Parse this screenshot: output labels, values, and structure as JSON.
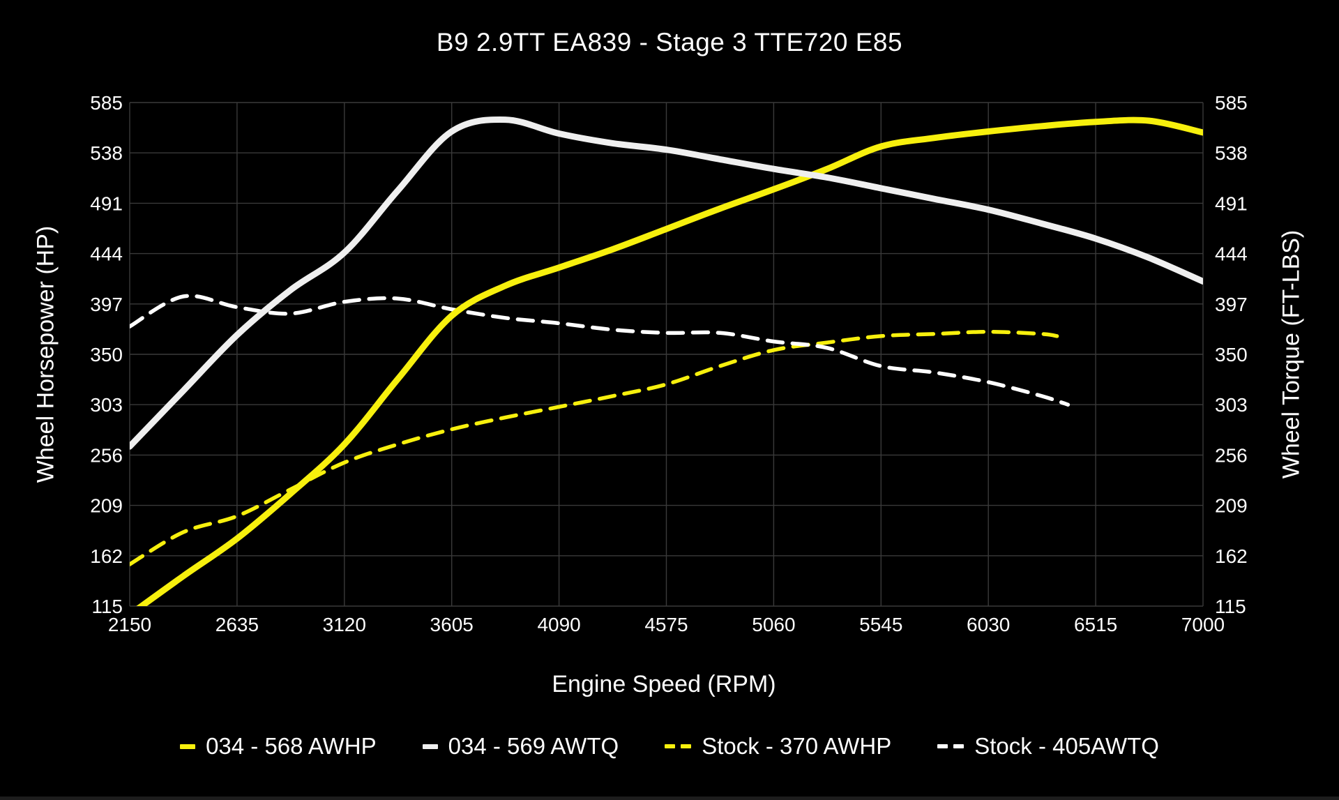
{
  "chart_data": {
    "type": "line",
    "title": "B9 2.9TT EA839 - Stage 3 TTE720 E85",
    "xlabel": "Engine Speed (RPM)",
    "ylabel_left": "Wheel Horsepower (HP)",
    "ylabel_right": "Wheel Torque (FT-LBS)",
    "xlim": [
      2150,
      7000
    ],
    "ylim": [
      115,
      585
    ],
    "x_ticks": [
      2150,
      2635,
      3120,
      3605,
      4090,
      4575,
      5060,
      5545,
      6030,
      6515,
      7000
    ],
    "y_ticks": [
      115,
      162,
      209,
      256,
      303,
      350,
      397,
      444,
      491,
      538,
      585
    ],
    "grid": true,
    "legend_position": "bottom",
    "colors": {
      "background": "#000000",
      "grid": "#3a3a3a",
      "text": "#fdfdfd",
      "accent_yellow": "#f7f00d",
      "accent_white": "#efefef"
    },
    "series": [
      {
        "name": "034 - 568 AWHP",
        "color": "#f7f00d",
        "dash": "solid",
        "width": 9,
        "points": [
          [
            2150,
            107
          ],
          [
            2392,
            143
          ],
          [
            2635,
            178
          ],
          [
            2877,
            220
          ],
          [
            3120,
            266
          ],
          [
            3362,
            327
          ],
          [
            3605,
            386
          ],
          [
            3847,
            414
          ],
          [
            4090,
            431
          ],
          [
            4332,
            448
          ],
          [
            4575,
            467
          ],
          [
            4817,
            486
          ],
          [
            5060,
            504
          ],
          [
            5302,
            523
          ],
          [
            5545,
            544
          ],
          [
            5787,
            552
          ],
          [
            6030,
            558
          ],
          [
            6272,
            563
          ],
          [
            6515,
            567
          ],
          [
            6757,
            568
          ],
          [
            7000,
            557
          ]
        ]
      },
      {
        "name": "034 - 569 AWTQ",
        "color": "#efefef",
        "dash": "solid",
        "width": 9,
        "points": [
          [
            2150,
            264
          ],
          [
            2392,
            316
          ],
          [
            2635,
            368
          ],
          [
            2877,
            410
          ],
          [
            3120,
            445
          ],
          [
            3362,
            503
          ],
          [
            3605,
            558
          ],
          [
            3847,
            569
          ],
          [
            4090,
            556
          ],
          [
            4332,
            547
          ],
          [
            4575,
            541
          ],
          [
            4817,
            532
          ],
          [
            5060,
            523
          ],
          [
            5302,
            515
          ],
          [
            5545,
            505
          ],
          [
            5787,
            495
          ],
          [
            6030,
            485
          ],
          [
            6272,
            472
          ],
          [
            6515,
            458
          ],
          [
            6757,
            440
          ],
          [
            7000,
            418
          ]
        ]
      },
      {
        "name": "Stock - 370 AWHP",
        "color": "#f7f00d",
        "dash": "dashed",
        "width": 5.5,
        "points": [
          [
            2150,
            154
          ],
          [
            2392,
            184
          ],
          [
            2635,
            199
          ],
          [
            2877,
            224
          ],
          [
            3120,
            249
          ],
          [
            3362,
            266
          ],
          [
            3605,
            280
          ],
          [
            3847,
            291
          ],
          [
            4090,
            301
          ],
          [
            4332,
            311
          ],
          [
            4575,
            322
          ],
          [
            4817,
            339
          ],
          [
            5060,
            354
          ],
          [
            5302,
            361
          ],
          [
            5545,
            367
          ],
          [
            5787,
            369
          ],
          [
            6030,
            371
          ],
          [
            6272,
            369
          ],
          [
            6340,
            367
          ]
        ]
      },
      {
        "name": "Stock - 405AWTQ",
        "color": "#ffffff",
        "dash": "dashed",
        "width": 5.5,
        "points": [
          [
            2150,
            376
          ],
          [
            2392,
            404
          ],
          [
            2635,
            394
          ],
          [
            2877,
            388
          ],
          [
            3120,
            399
          ],
          [
            3362,
            402
          ],
          [
            3605,
            392
          ],
          [
            3847,
            384
          ],
          [
            4090,
            379
          ],
          [
            4332,
            373
          ],
          [
            4575,
            370
          ],
          [
            4817,
            370
          ],
          [
            5060,
            362
          ],
          [
            5302,
            356
          ],
          [
            5545,
            339
          ],
          [
            5787,
            333
          ],
          [
            6030,
            324
          ],
          [
            6272,
            311
          ],
          [
            6390,
            303
          ]
        ]
      }
    ]
  }
}
